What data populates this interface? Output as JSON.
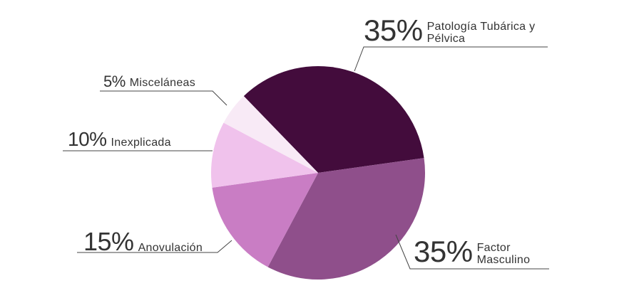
{
  "chart_data": {
    "type": "pie",
    "categories": [
      "Patología Tubárica y Pélvica",
      "Factor Masculino",
      "Anovulación",
      "Inexplicada",
      "Misceláneas"
    ],
    "values": [
      35,
      35,
      15,
      10,
      5
    ],
    "value_labels": [
      "35%",
      "35%",
      "15%",
      "10%",
      "5%"
    ],
    "colors": [
      "#430c3c",
      "#8f4f8b",
      "#c97dc4",
      "#f0c2ec",
      "#f8eaf6"
    ]
  }
}
